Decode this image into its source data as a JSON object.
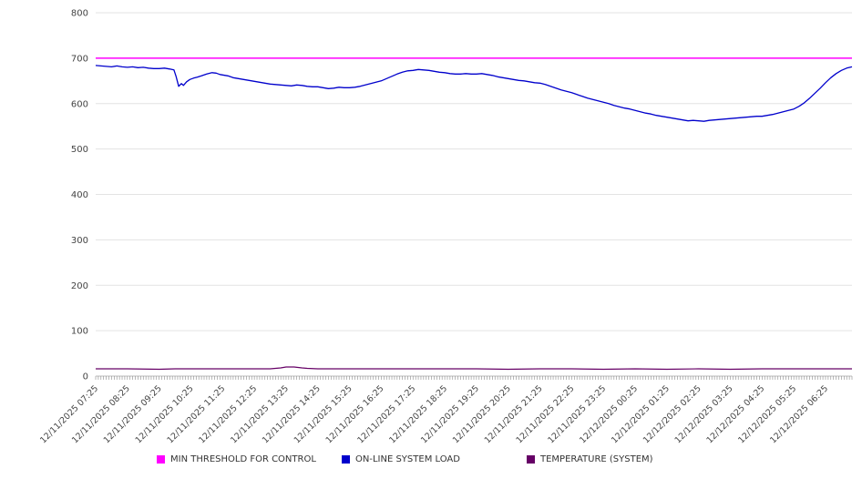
{
  "legend": {
    "items": [
      {
        "label": "MIN THRESHOLD FOR CONTROL",
        "color": "#ff00ff"
      },
      {
        "label": "ON-LINE SYSTEM LOAD",
        "color": "#0000cc"
      },
      {
        "label": "TEMPERATURE (SYSTEM)",
        "color": "#660066"
      }
    ]
  },
  "chart_data": {
    "type": "line",
    "title": "",
    "xlabel": "",
    "ylabel": "",
    "ylim": [
      0,
      800
    ],
    "ytick_step": 100,
    "xlim": [
      0,
      1430
    ],
    "x_tick_interval_minutes": 60,
    "minor_tick_minutes": 5,
    "grid": "horizontal",
    "legend_position": "bottom",
    "x_labels": [
      "12/11/2025 07:25",
      "12/11/2025 08:25",
      "12/11/2025 09:25",
      "12/11/2025 10:25",
      "12/11/2025 11:25",
      "12/11/2025 12:25",
      "12/11/2025 13:25",
      "12/11/2025 14:25",
      "12/11/2025 15:25",
      "12/11/2025 16:25",
      "12/11/2025 17:25",
      "12/11/2025 18:25",
      "12/11/2025 19:25",
      "12/11/2025 20:25",
      "12/11/2025 21:25",
      "12/11/2025 22:25",
      "12/11/2025 23:25",
      "12/12/2025 00:25",
      "12/12/2025 01:25",
      "12/12/2025 02:25",
      "12/12/2025 03:25",
      "12/12/2025 04:25",
      "12/12/2025 05:25",
      "12/12/2025 06:25"
    ],
    "series": [
      {
        "name": "MIN THRESHOLD FOR CONTROL",
        "color": "#ff00ff",
        "width": 1.5,
        "points": [
          [
            0,
            700
          ],
          [
            1430,
            700
          ]
        ]
      },
      {
        "name": "ON-LINE SYSTEM LOAD",
        "color": "#0000cc",
        "width": 1.3,
        "points": [
          [
            0,
            684
          ],
          [
            10,
            683
          ],
          [
            20,
            682
          ],
          [
            30,
            681
          ],
          [
            40,
            683
          ],
          [
            50,
            681
          ],
          [
            60,
            680
          ],
          [
            70,
            681
          ],
          [
            80,
            679
          ],
          [
            90,
            680
          ],
          [
            100,
            678
          ],
          [
            110,
            677
          ],
          [
            120,
            677
          ],
          [
            130,
            678
          ],
          [
            140,
            676
          ],
          [
            148,
            674
          ],
          [
            152,
            660
          ],
          [
            157,
            638
          ],
          [
            162,
            644
          ],
          [
            166,
            640
          ],
          [
            172,
            648
          ],
          [
            178,
            653
          ],
          [
            185,
            656
          ],
          [
            192,
            658
          ],
          [
            200,
            661
          ],
          [
            210,
            665
          ],
          [
            220,
            668
          ],
          [
            228,
            667
          ],
          [
            235,
            664
          ],
          [
            240,
            663
          ],
          [
            250,
            661
          ],
          [
            260,
            657
          ],
          [
            270,
            655
          ],
          [
            280,
            653
          ],
          [
            290,
            651
          ],
          [
            300,
            649
          ],
          [
            310,
            647
          ],
          [
            320,
            645
          ],
          [
            330,
            643
          ],
          [
            340,
            642
          ],
          [
            350,
            641
          ],
          [
            360,
            640
          ],
          [
            370,
            639
          ],
          [
            380,
            641
          ],
          [
            390,
            640
          ],
          [
            400,
            638
          ],
          [
            410,
            637
          ],
          [
            420,
            637
          ],
          [
            430,
            635
          ],
          [
            440,
            633
          ],
          [
            450,
            634
          ],
          [
            460,
            636
          ],
          [
            470,
            635
          ],
          [
            480,
            635
          ],
          [
            490,
            636
          ],
          [
            500,
            638
          ],
          [
            510,
            641
          ],
          [
            520,
            644
          ],
          [
            530,
            647
          ],
          [
            540,
            650
          ],
          [
            550,
            655
          ],
          [
            560,
            660
          ],
          [
            570,
            665
          ],
          [
            580,
            669
          ],
          [
            590,
            672
          ],
          [
            600,
            673
          ],
          [
            610,
            675
          ],
          [
            620,
            674
          ],
          [
            630,
            673
          ],
          [
            640,
            671
          ],
          [
            650,
            669
          ],
          [
            660,
            668
          ],
          [
            670,
            666
          ],
          [
            680,
            665
          ],
          [
            690,
            665
          ],
          [
            700,
            666
          ],
          [
            710,
            665
          ],
          [
            720,
            665
          ],
          [
            730,
            666
          ],
          [
            740,
            664
          ],
          [
            750,
            662
          ],
          [
            760,
            659
          ],
          [
            770,
            657
          ],
          [
            780,
            655
          ],
          [
            790,
            653
          ],
          [
            800,
            651
          ],
          [
            810,
            650
          ],
          [
            820,
            648
          ],
          [
            830,
            646
          ],
          [
            840,
            645
          ],
          [
            850,
            642
          ],
          [
            860,
            638
          ],
          [
            870,
            634
          ],
          [
            880,
            630
          ],
          [
            890,
            627
          ],
          [
            900,
            624
          ],
          [
            910,
            620
          ],
          [
            920,
            616
          ],
          [
            930,
            612
          ],
          [
            940,
            609
          ],
          [
            950,
            606
          ],
          [
            960,
            603
          ],
          [
            970,
            600
          ],
          [
            980,
            596
          ],
          [
            990,
            593
          ],
          [
            1000,
            590
          ],
          [
            1010,
            588
          ],
          [
            1020,
            585
          ],
          [
            1030,
            582
          ],
          [
            1040,
            579
          ],
          [
            1050,
            577
          ],
          [
            1060,
            574
          ],
          [
            1070,
            572
          ],
          [
            1080,
            570
          ],
          [
            1090,
            568
          ],
          [
            1100,
            566
          ],
          [
            1110,
            564
          ],
          [
            1120,
            562
          ],
          [
            1130,
            563
          ],
          [
            1140,
            562
          ],
          [
            1150,
            561
          ],
          [
            1160,
            563
          ],
          [
            1170,
            564
          ],
          [
            1180,
            565
          ],
          [
            1190,
            566
          ],
          [
            1200,
            567
          ],
          [
            1210,
            568
          ],
          [
            1220,
            569
          ],
          [
            1230,
            570
          ],
          [
            1240,
            571
          ],
          [
            1250,
            572
          ],
          [
            1260,
            572
          ],
          [
            1270,
            574
          ],
          [
            1280,
            576
          ],
          [
            1290,
            579
          ],
          [
            1300,
            582
          ],
          [
            1310,
            585
          ],
          [
            1320,
            588
          ],
          [
            1330,
            594
          ],
          [
            1340,
            602
          ],
          [
            1350,
            612
          ],
          [
            1360,
            623
          ],
          [
            1370,
            634
          ],
          [
            1380,
            646
          ],
          [
            1390,
            657
          ],
          [
            1400,
            666
          ],
          [
            1410,
            673
          ],
          [
            1420,
            678
          ],
          [
            1430,
            681
          ]
        ]
      },
      {
        "name": "TEMPERATURE (SYSTEM)",
        "color": "#660066",
        "width": 1.2,
        "points": [
          [
            0,
            16
          ],
          [
            60,
            16
          ],
          [
            120,
            15
          ],
          [
            150,
            16
          ],
          [
            180,
            16
          ],
          [
            240,
            16
          ],
          [
            300,
            16
          ],
          [
            330,
            16
          ],
          [
            350,
            18
          ],
          [
            360,
            20
          ],
          [
            375,
            20
          ],
          [
            390,
            18
          ],
          [
            400,
            17
          ],
          [
            420,
            16
          ],
          [
            480,
            16
          ],
          [
            540,
            16
          ],
          [
            600,
            16
          ],
          [
            660,
            16
          ],
          [
            720,
            16
          ],
          [
            780,
            15
          ],
          [
            840,
            16
          ],
          [
            900,
            16
          ],
          [
            960,
            15
          ],
          [
            1020,
            16
          ],
          [
            1080,
            15
          ],
          [
            1140,
            16
          ],
          [
            1200,
            15
          ],
          [
            1260,
            16
          ],
          [
            1320,
            16
          ],
          [
            1380,
            16
          ],
          [
            1430,
            16
          ]
        ]
      }
    ]
  }
}
